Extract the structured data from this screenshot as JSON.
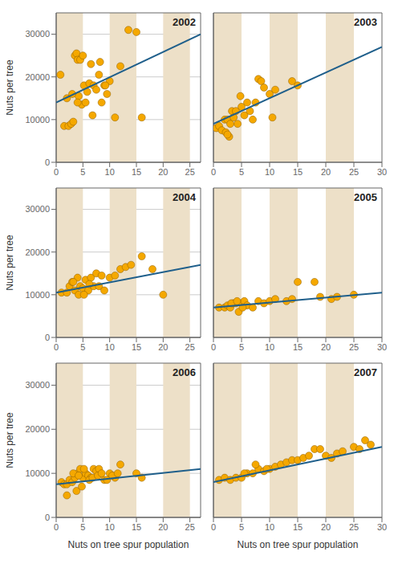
{
  "chart_data": [
    {
      "type": "scatter",
      "title": "2002",
      "ylabel": "Nuts per tree",
      "xlim": [
        0,
        27
      ],
      "ylim": [
        0,
        35000
      ],
      "xticks": [
        0,
        5,
        10,
        15,
        20,
        25
      ],
      "yticks": [
        0,
        10000,
        20000,
        30000
      ],
      "grid": "y",
      "series": [
        {
          "type": "band",
          "color": "#EDE0C8",
          "ranges": [
            [
              0,
              5
            ],
            [
              10,
              15
            ],
            [
              20,
              25
            ]
          ]
        },
        {
          "type": "scatter",
          "color": "#F5A800",
          "x": [
            0.8,
            1.5,
            2.0,
            2.3,
            2.8,
            3.2,
            3.5,
            3.8,
            4.0,
            4.2,
            4.5,
            4.8,
            5.0,
            5.2,
            5.5,
            5.8,
            6.2,
            6.5,
            7.0,
            7.5,
            8.0,
            8.5,
            9.0,
            9.5,
            10.0,
            11.0,
            12.0,
            13.5,
            15.0,
            16.0,
            4.0,
            3.0,
            6.8,
            8.2,
            9.2
          ],
          "values": [
            20500,
            8500,
            15000,
            8500,
            9000,
            9500,
            25000,
            25500,
            24000,
            15500,
            24000,
            13500,
            25000,
            18000,
            14000,
            16500,
            18500,
            23000,
            18000,
            17000,
            20500,
            14000,
            18000,
            16000,
            19000,
            10500,
            22500,
            31000,
            30500,
            10500,
            14000,
            16000,
            11000,
            23500,
            18000
          ]
        },
        {
          "type": "line",
          "color": "#1F5F8B",
          "x": [
            0,
            27
          ],
          "values": [
            14000,
            30000
          ]
        }
      ]
    },
    {
      "type": "scatter",
      "title": "2003",
      "xlim": [
        0,
        30
      ],
      "ylim": [
        0,
        35000
      ],
      "xticks": [
        0,
        5,
        10,
        15,
        20,
        25,
        30
      ],
      "yticks": [
        0,
        10000,
        20000,
        30000
      ],
      "grid": "y",
      "tick_labels": "x",
      "series": [
        {
          "type": "band",
          "color": "#EDE0C8",
          "ranges": [
            [
              0,
              5
            ],
            [
              10,
              15
            ],
            [
              20,
              25
            ]
          ]
        },
        {
          "type": "scatter",
          "color": "#F5A800",
          "x": [
            0.5,
            1.0,
            1.5,
            2.0,
            2.2,
            2.5,
            2.8,
            3.0,
            3.3,
            3.6,
            4.0,
            4.3,
            4.8,
            5.0,
            5.5,
            6.0,
            6.5,
            7.0,
            7.5,
            8.0,
            8.5,
            9.0,
            10.0,
            10.5,
            11.0,
            14.0,
            15.0,
            2.5
          ],
          "values": [
            8000,
            8500,
            7500,
            10000,
            7000,
            10000,
            6000,
            9000,
            12000,
            10500,
            12000,
            9000,
            15500,
            13000,
            11000,
            14000,
            12000,
            10000,
            14000,
            19500,
            19000,
            17500,
            16000,
            10500,
            17000,
            19000,
            18000,
            6500
          ]
        },
        {
          "type": "line",
          "color": "#1F5F8B",
          "x": [
            0,
            30
          ],
          "values": [
            9000,
            27000
          ]
        }
      ]
    },
    {
      "type": "scatter",
      "title": "2004",
      "ylabel": "Nuts per tree",
      "xlim": [
        0,
        27
      ],
      "ylim": [
        0,
        35000
      ],
      "xticks": [
        0,
        5,
        10,
        15,
        20,
        25
      ],
      "yticks": [
        0,
        10000,
        20000,
        30000
      ],
      "grid": "y",
      "series": [
        {
          "type": "band",
          "color": "#EDE0C8",
          "ranges": [
            [
              0,
              5
            ],
            [
              10,
              15
            ],
            [
              20,
              25
            ]
          ]
        },
        {
          "type": "scatter",
          "color": "#F5A800",
          "x": [
            1,
            2,
            2.5,
            3,
            3.5,
            4,
            4.5,
            5,
            5.5,
            6,
            6.5,
            7,
            7.5,
            8,
            8.5,
            9,
            10,
            11,
            12,
            13,
            14,
            16,
            18,
            20,
            3.2,
            4.2,
            5.2,
            6.2
          ],
          "values": [
            10500,
            10500,
            12000,
            13000,
            11000,
            14000,
            12000,
            11500,
            13500,
            11000,
            14000,
            12000,
            15000,
            12000,
            14500,
            11000,
            14000,
            14500,
            16000,
            16500,
            17000,
            19000,
            16000,
            10000,
            13000,
            10000,
            10000,
            12500
          ]
        },
        {
          "type": "line",
          "color": "#1F5F8B",
          "x": [
            0,
            27
          ],
          "values": [
            10500,
            17000
          ]
        }
      ]
    },
    {
      "type": "scatter",
      "title": "2005",
      "xlim": [
        0,
        30
      ],
      "ylim": [
        0,
        35000
      ],
      "xticks": [
        0,
        5,
        10,
        15,
        20,
        25,
        30
      ],
      "yticks": [
        0,
        10000,
        20000,
        30000
      ],
      "grid": "y",
      "tick_labels": "x",
      "series": [
        {
          "type": "band",
          "color": "#EDE0C8",
          "ranges": [
            [
              0,
              5
            ],
            [
              10,
              15
            ],
            [
              20,
              25
            ]
          ]
        },
        {
          "type": "scatter",
          "color": "#F5A800",
          "x": [
            1,
            2,
            2.5,
            3,
            3.5,
            4,
            4.5,
            5,
            5.5,
            6,
            7,
            8,
            9,
            10,
            11,
            13,
            14,
            15,
            18,
            19,
            21,
            22,
            25,
            3.2,
            4.2,
            5.2
          ],
          "values": [
            7000,
            7000,
            7500,
            7000,
            8000,
            8000,
            6000,
            8000,
            8500,
            7500,
            7000,
            8500,
            8000,
            8500,
            9000,
            8500,
            9000,
            13000,
            13000,
            9500,
            9000,
            9500,
            10000,
            8000,
            8500,
            7000
          ]
        },
        {
          "type": "line",
          "color": "#1F5F8B",
          "x": [
            0,
            30
          ],
          "values": [
            7000,
            10500
          ]
        }
      ]
    },
    {
      "type": "scatter",
      "title": "2006",
      "xlabel": "Nuts on tree spur population",
      "ylabel": "Nuts per tree",
      "xlim": [
        0,
        27
      ],
      "ylim": [
        0,
        35000
      ],
      "xticks": [
        0,
        5,
        10,
        15,
        20,
        25
      ],
      "yticks": [
        0,
        10000,
        20000,
        30000
      ],
      "grid": "y",
      "series": [
        {
          "type": "band",
          "color": "#EDE0C8",
          "ranges": [
            [
              0,
              5
            ],
            [
              10,
              15
            ],
            [
              20,
              25
            ]
          ]
        },
        {
          "type": "scatter",
          "color": "#F5A800",
          "x": [
            1,
            1.5,
            2,
            2.5,
            3,
            3.5,
            4,
            4.5,
            5,
            5.5,
            6,
            6.5,
            7,
            7.5,
            8,
            9,
            10,
            11,
            12,
            15,
            16,
            3.2,
            4.2,
            5.2,
            6.2,
            2.0,
            3.8,
            4.8,
            6.8,
            7.8,
            8.5,
            9.5,
            10.5,
            11.5
          ],
          "values": [
            8000,
            7500,
            7500,
            8500,
            8000,
            9000,
            10000,
            11000,
            9000,
            10000,
            9500,
            9000,
            11000,
            10500,
            11000,
            8500,
            10000,
            9000,
            12000,
            10000,
            9000,
            10000,
            9500,
            11000,
            8500,
            5000,
            6000,
            7000,
            9000,
            9500,
            10000,
            8500,
            9500,
            10000
          ]
        },
        {
          "type": "line",
          "color": "#1F5F8B",
          "x": [
            0,
            27
          ],
          "values": [
            7500,
            11000
          ]
        }
      ]
    },
    {
      "type": "scatter",
      "title": "2007",
      "xlabel": "Nuts on tree spur population",
      "xlim": [
        0,
        30
      ],
      "ylim": [
        0,
        35000
      ],
      "xticks": [
        0,
        5,
        10,
        15,
        20,
        25,
        30
      ],
      "yticks": [
        0,
        10000,
        20000,
        30000
      ],
      "grid": "y",
      "tick_labels": "x",
      "series": [
        {
          "type": "band",
          "color": "#EDE0C8",
          "ranges": [
            [
              0,
              5
            ],
            [
              10,
              15
            ],
            [
              20,
              25
            ]
          ]
        },
        {
          "type": "scatter",
          "color": "#F5A800",
          "x": [
            1,
            2,
            3,
            4,
            5,
            6,
            7,
            8,
            9,
            10,
            11,
            12,
            13,
            14,
            15,
            16,
            17,
            18,
            19,
            20,
            21,
            22,
            23,
            25,
            26,
            27,
            28,
            5.5,
            7.5,
            9.5
          ],
          "values": [
            8500,
            9000,
            8500,
            9000,
            9000,
            10000,
            10000,
            11000,
            10500,
            11000,
            11500,
            12000,
            12500,
            13000,
            13000,
            13500,
            14000,
            15500,
            15500,
            14000,
            13500,
            14500,
            15000,
            16000,
            15500,
            17500,
            16500,
            10000,
            12000,
            11000
          ]
        },
        {
          "type": "line",
          "color": "#1F5F8B",
          "x": [
            0,
            30
          ],
          "values": [
            8000,
            16000
          ]
        }
      ]
    }
  ]
}
